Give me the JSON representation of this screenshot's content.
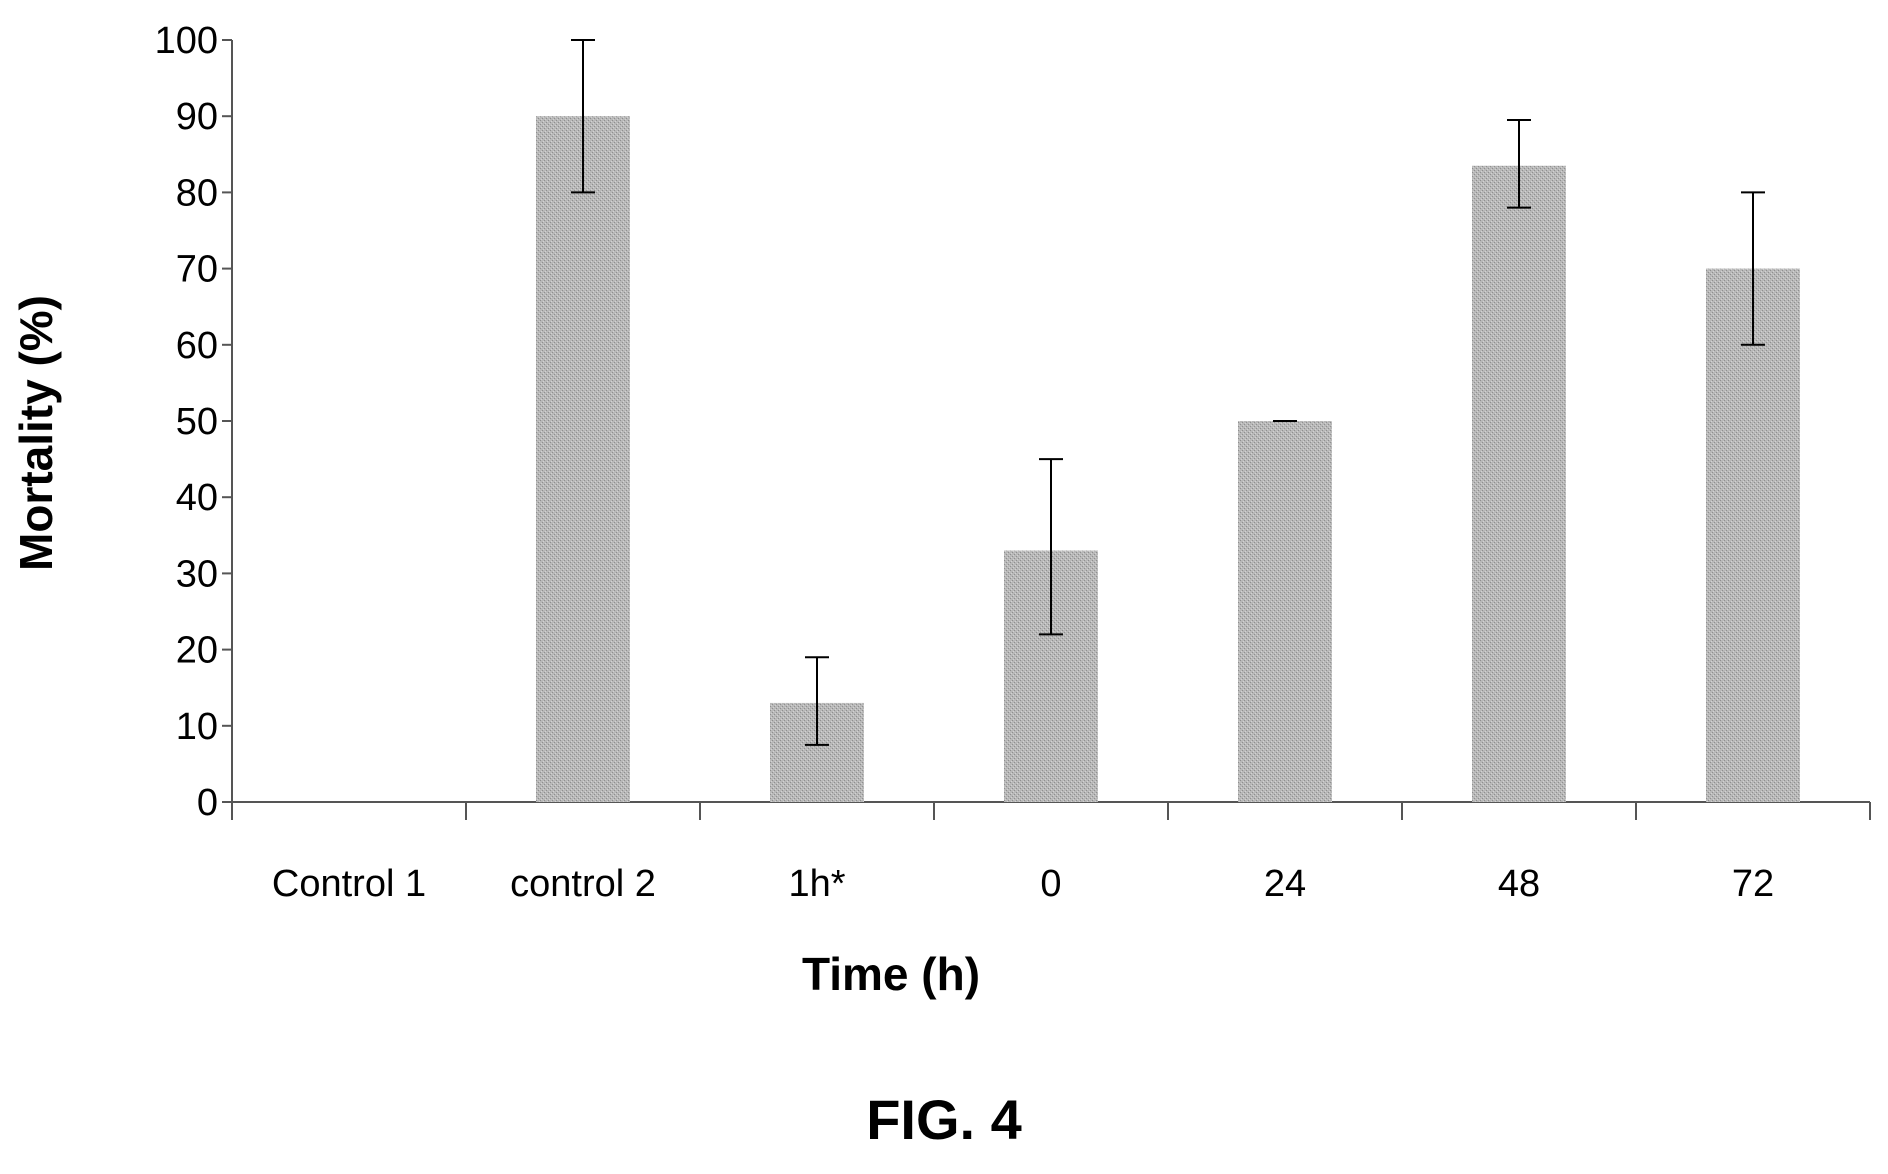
{
  "chart_data": {
    "type": "bar",
    "categories": [
      "Control 1",
      "control 2",
      "1h*",
      "0",
      "24",
      "48",
      "72"
    ],
    "values": [
      0,
      90,
      13,
      33,
      50,
      83.5,
      70
    ],
    "error_low": [
      null,
      80,
      7.5,
      22,
      50,
      78,
      60
    ],
    "error_high": [
      null,
      100,
      19,
      45,
      50,
      89.5,
      80
    ],
    "xlabel": "Time (h)",
    "ylabel": "Mortality (%)",
    "ylim": [
      0,
      100
    ],
    "yticks": [
      0,
      10,
      20,
      30,
      40,
      50,
      60,
      70,
      80,
      90,
      100
    ],
    "grid": false,
    "bar_color": "#b3b3b3"
  },
  "caption": "FIG. 4"
}
